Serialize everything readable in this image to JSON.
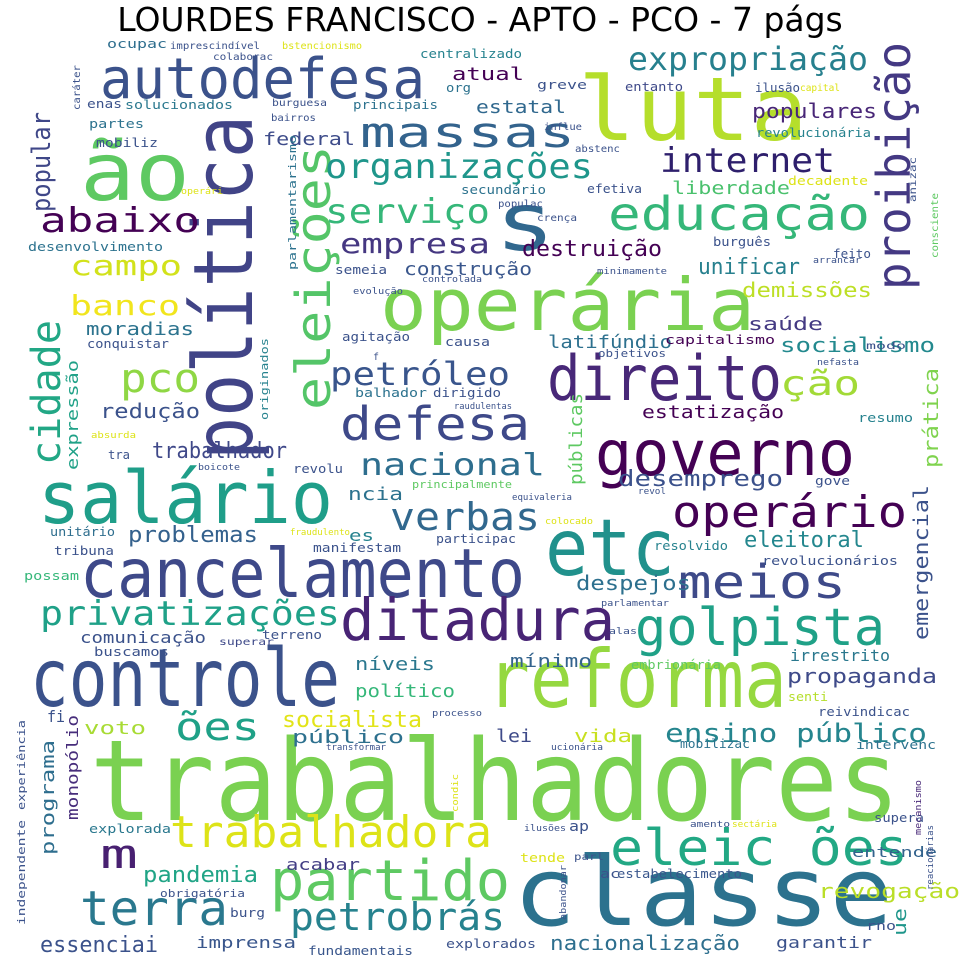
{
  "title": "LOURDES FRANCISCO - APTO - PCO - 7 págs",
  "words": [
    {
      "text": "trabalhadores",
      "color": "#7ad151"
    },
    {
      "text": "classe",
      "color": "#2c728e"
    },
    {
      "text": "reforma",
      "color": "#95d840"
    },
    {
      "text": "controle",
      "color": "#3b528b"
    },
    {
      "text": "cancelamento",
      "color": "#3e4989"
    },
    {
      "text": "salário",
      "color": "#1f9e89"
    },
    {
      "text": "política",
      "color": "#414487"
    },
    {
      "text": "operária",
      "color": "#7ad151"
    },
    {
      "text": "luta",
      "color": "#b5de2b"
    },
    {
      "text": "ão",
      "color": "#5ec962"
    },
    {
      "text": "autodefesa",
      "color": "#3b528b"
    },
    {
      "text": "s",
      "color": "#31688e"
    },
    {
      "text": "governo",
      "color": "#440154"
    },
    {
      "text": "direito",
      "color": "#482878"
    },
    {
      "text": "etc",
      "color": "#21918c"
    },
    {
      "text": "ditadura",
      "color": "#482475"
    },
    {
      "text": "golpista",
      "color": "#1fa187"
    },
    {
      "text": "partido",
      "color": "#5ec962"
    },
    {
      "text": "eleic ões",
      "color": "#22a884"
    },
    {
      "text": "trabalhadora",
      "color": "#dde318"
    },
    {
      "text": "terra",
      "color": "#2a788e"
    },
    {
      "text": "meios",
      "color": "#3e4a89"
    },
    {
      "text": "operário",
      "color": "#440154"
    },
    {
      "text": "educação",
      "color": "#35b779"
    },
    {
      "text": "proibição",
      "color": "#443983"
    },
    {
      "text": "eleições",
      "color": "#54c568"
    },
    {
      "text": "massas",
      "color": "#33638d"
    },
    {
      "text": "defesa",
      "color": "#3e4989"
    },
    {
      "text": "cidade",
      "color": "#22a785"
    },
    {
      "text": "verbas",
      "color": "#31688e"
    },
    {
      "text": "petrobrás",
      "color": "#26828e"
    },
    {
      "text": "privatizações",
      "color": "#1fa188"
    },
    {
      "text": "organizações",
      "color": "#1f968b"
    },
    {
      "text": "internet",
      "color": "#2e1f6c"
    },
    {
      "text": "expropriação",
      "color": "#27808e"
    },
    {
      "text": "abaixo",
      "color": "#440154"
    },
    {
      "text": "serviço",
      "color": "#35b779"
    },
    {
      "text": "pco",
      "color": "#8fd744"
    },
    {
      "text": "ões",
      "color": "#1fa187"
    },
    {
      "text": "m",
      "color": "#482071"
    },
    {
      "text": "petróleo",
      "color": "#39558c"
    },
    {
      "text": "ção",
      "color": "#a2da37"
    },
    {
      "text": "nacional",
      "color": "#2e6e8e"
    },
    {
      "text": "popular",
      "color": "#3f4788"
    },
    {
      "text": "empresa",
      "color": "#453781"
    },
    {
      "text": "campo",
      "color": "#d2e21b"
    },
    {
      "text": "banco",
      "color": "#f1e51d"
    },
    {
      "text": "ensino público",
      "color": "#25858e"
    },
    {
      "text": "socialista",
      "color": "#e2e418"
    },
    {
      "text": "pandemia",
      "color": "#20a486"
    },
    {
      "text": "essenciai",
      "color": "#3b528b"
    },
    {
      "text": "desemprego",
      "color": "#3b518b"
    },
    {
      "text": "trabalhador",
      "color": "#3f4889"
    },
    {
      "text": "problemas",
      "color": "#34618d"
    },
    {
      "text": "propaganda",
      "color": "#3e4a89"
    },
    {
      "text": "emergencial",
      "color": "#3b528b"
    },
    {
      "text": "despejos",
      "color": "#2d708e"
    },
    {
      "text": "eleitoral",
      "color": "#24878e"
    },
    {
      "text": "destruição",
      "color": "#440154"
    },
    {
      "text": "unificar",
      "color": "#27808e"
    },
    {
      "text": "socialismo",
      "color": "#23898e"
    },
    {
      "text": "redução",
      "color": "#3b528b"
    },
    {
      "text": "revogação",
      "color": "#bade28"
    },
    {
      "text": "nacionalização",
      "color": "#2e6f8e"
    },
    {
      "text": "populares",
      "color": "#482677"
    },
    {
      "text": "demissões",
      "color": "#bddf26"
    },
    {
      "text": "liberdade",
      "color": "#4ac16d"
    },
    {
      "text": "moradias",
      "color": "#2c738e"
    },
    {
      "text": "estatização",
      "color": "#440154"
    },
    {
      "text": "latifúndio",
      "color": "#2d708e"
    },
    {
      "text": "construção",
      "color": "#39568c"
    },
    {
      "text": "saúde",
      "color": "#443a83"
    },
    {
      "text": "prática",
      "color": "#7fd34e"
    },
    {
      "text": "federal",
      "color": "#3e4c8a"
    },
    {
      "text": "atual",
      "color": "#440154"
    },
    {
      "text": "estatal",
      "color": "#30688e"
    },
    {
      "text": "mínimo",
      "color": "#33638d"
    },
    {
      "text": "político",
      "color": "#35b779"
    },
    {
      "text": "níveis",
      "color": "#2a778e"
    },
    {
      "text": "voto",
      "color": "#a8db34"
    },
    {
      "text": "lei",
      "color": "#3e4a89"
    },
    {
      "text": "vida",
      "color": "#c8e020"
    },
    {
      "text": "público",
      "color": "#2d708e"
    },
    {
      "text": "comunicação",
      "color": "#3b528b"
    },
    {
      "text": "acabar",
      "color": "#433e85"
    },
    {
      "text": "imprensa",
      "color": "#39568c"
    },
    {
      "text": "garantir",
      "color": "#3b528b"
    },
    {
      "text": "programa",
      "color": "#2e6e8e"
    },
    {
      "text": "monopólio",
      "color": "#472d7b"
    },
    {
      "text": "públicas",
      "color": "#5ec962"
    },
    {
      "text": "ncia",
      "color": "#2c728e"
    },
    {
      "text": "ue",
      "color": "#1f968b"
    },
    {
      "text": "expressão",
      "color": "#1fa187"
    },
    {
      "text": "irrestrito",
      "color": "#2a788e"
    },
    {
      "text": "entende",
      "color": "#33638d"
    },
    {
      "text": "superar",
      "color": "#3e4989"
    },
    {
      "text": "capitalismo",
      "color": "#440154"
    },
    {
      "text": "es",
      "color": "#26828e"
    },
    {
      "text": "fi",
      "color": "#3b528b"
    },
    {
      "text": "explorada",
      "color": "#2a788e"
    },
    {
      "text": "tribuna",
      "color": "#3b528b"
    },
    {
      "text": "unitário",
      "color": "#2e6e8e"
    },
    {
      "text": "manifestam",
      "color": "#3b528b"
    },
    {
      "text": "resolvido",
      "color": "#26828e"
    },
    {
      "text": "revolucionários",
      "color": "#3b528b"
    },
    {
      "text": "burg",
      "color": "#3b528b"
    },
    {
      "text": "estabelecimento",
      "color": "#39568c"
    },
    {
      "text": "explorados",
      "color": "#3b528b"
    },
    {
      "text": "fundamentais",
      "color": "#39568c"
    },
    {
      "text": "greve",
      "color": "#3b528b"
    },
    {
      "text": "entanto",
      "color": "#3e4989"
    },
    {
      "text": "centralizado",
      "color": "#26828e"
    },
    {
      "text": "principais",
      "color": "#2c728e"
    },
    {
      "text": "solucionados",
      "color": "#2a788e"
    },
    {
      "text": "enas",
      "color": "#3b528b"
    },
    {
      "text": "partes",
      "color": "#2c728e"
    },
    {
      "text": "mobiliz",
      "color": "#3b528b"
    },
    {
      "text": "ocupac",
      "color": "#2e6e8e"
    },
    {
      "text": "causa",
      "color": "#3b528b"
    },
    {
      "text": "conquistar",
      "color": "#3b528b"
    },
    {
      "text": "agitação",
      "color": "#3b528b"
    },
    {
      "text": "dirigido",
      "color": "#3b528b"
    },
    {
      "text": "balhador",
      "color": "#2c728e"
    },
    {
      "text": "objetivos",
      "color": "#3b528b"
    },
    {
      "text": "resumo",
      "color": "#26828e"
    },
    {
      "text": "modo",
      "color": "#3b528b"
    },
    {
      "text": "secundário",
      "color": "#2c728e"
    },
    {
      "text": "efetiva",
      "color": "#3b528b"
    },
    {
      "text": "burguês",
      "color": "#3b528b"
    },
    {
      "text": "decadente",
      "color": "#dde318"
    },
    {
      "text": "feito",
      "color": "#3b528b"
    },
    {
      "text": "semeia",
      "color": "#3b528b"
    },
    {
      "text": "org",
      "color": "#2c728e"
    },
    {
      "text": "revolucionária",
      "color": "#26828e"
    },
    {
      "text": "ilusão",
      "color": "#3b528b"
    },
    {
      "text": "desenvolvimento",
      "color": "#2c728e"
    },
    {
      "text": "revolu",
      "color": "#3b528b"
    },
    {
      "text": "gove",
      "color": "#3b528b"
    },
    {
      "text": "tra",
      "color": "#3b528b"
    },
    {
      "text": "participac",
      "color": "#3b528b"
    },
    {
      "text": "possam",
      "color": "#35b779"
    },
    {
      "text": "embrionária",
      "color": "#5ec962"
    },
    {
      "text": "reivindicac",
      "color": "#3b528b"
    },
    {
      "text": "intervenc",
      "color": "#2c728e"
    },
    {
      "text": "mobilizac",
      "color": "#2c728e"
    },
    {
      "text": "buscamos",
      "color": "#3b528b"
    },
    {
      "text": "terreno",
      "color": "#3b528b"
    },
    {
      "text": "senti",
      "color": "#b5de2b"
    },
    {
      "text": "ap",
      "color": "#3b528b"
    },
    {
      "text": "supera",
      "color": "#3b528b"
    },
    {
      "text": "tende",
      "color": "#dde318"
    },
    {
      "text": "ac",
      "color": "#3b528b"
    },
    {
      "text": "parl",
      "color": "#3b528b"
    },
    {
      "text": "rno",
      "color": "#3b528b"
    },
    {
      "text": "independente",
      "color": "#3b528b"
    },
    {
      "text": "experiência",
      "color": "#3b528b"
    },
    {
      "text": "parlamentarismo",
      "color": "#2c728e"
    },
    {
      "text": "originados",
      "color": "#26828e"
    },
    {
      "text": "imprescindível",
      "color": "#3b528b"
    },
    {
      "text": "bstencionismo",
      "color": "#dde318"
    },
    {
      "text": "colaborac",
      "color": "#3b528b"
    },
    {
      "text": "burguesa",
      "color": "#3b528b"
    },
    {
      "text": "bairros",
      "color": "#3b528b"
    },
    {
      "text": "influe",
      "color": "#3b528b"
    },
    {
      "text": "abstenc",
      "color": "#3b528b"
    },
    {
      "text": "capital",
      "color": "#dde318"
    },
    {
      "text": "anizac",
      "color": "#3b528b"
    },
    {
      "text": "consciente",
      "color": "#5ec962"
    },
    {
      "text": "populac",
      "color": "#3b528b"
    },
    {
      "text": "crença",
      "color": "#3b528b"
    },
    {
      "text": "arrancar",
      "color": "#3b528b"
    },
    {
      "text": "minimamente",
      "color": "#3b528b"
    },
    {
      "text": "controlada",
      "color": "#3b528b"
    },
    {
      "text": "evolução",
      "color": "#3b528b"
    },
    {
      "text": "nefasta",
      "color": "#3b528b"
    },
    {
      "text": "raudulentas",
      "color": "#3b528b"
    },
    {
      "text": "absurda",
      "color": "#dde318"
    },
    {
      "text": "boicote",
      "color": "#3b528b"
    },
    {
      "text": "principalmente",
      "color": "#5ec962"
    },
    {
      "text": "equivaleria",
      "color": "#3b528b"
    },
    {
      "text": "revol",
      "color": "#3b528b"
    },
    {
      "text": "fraudulento",
      "color": "#dde318"
    },
    {
      "text": "colocado",
      "color": "#dde318"
    },
    {
      "text": "parlamentar",
      "color": "#3b528b"
    },
    {
      "text": "alas",
      "color": "#3b528b"
    },
    {
      "text": "processo",
      "color": "#3b528b"
    },
    {
      "text": "transformar",
      "color": "#3b528b"
    },
    {
      "text": "ucionária",
      "color": "#3b528b"
    },
    {
      "text": "ilusões",
      "color": "#3b528b"
    },
    {
      "text": "amento",
      "color": "#3b528b"
    },
    {
      "text": "sectária",
      "color": "#dde318"
    },
    {
      "text": "mecanismo",
      "color": "#482878"
    },
    {
      "text": "reacionárias",
      "color": "#3b528b"
    },
    {
      "text": "condic",
      "color": "#dde318"
    },
    {
      "text": "abandonar",
      "color": "#3b528b"
    },
    {
      "text": "obrigatória",
      "color": "#3b528b"
    },
    {
      "text": "operári",
      "color": "#dde318"
    },
    {
      "text": "caráter",
      "color": "#3b528b"
    },
    {
      "text": "f",
      "color": "#3b528b"
    }
  ]
}
